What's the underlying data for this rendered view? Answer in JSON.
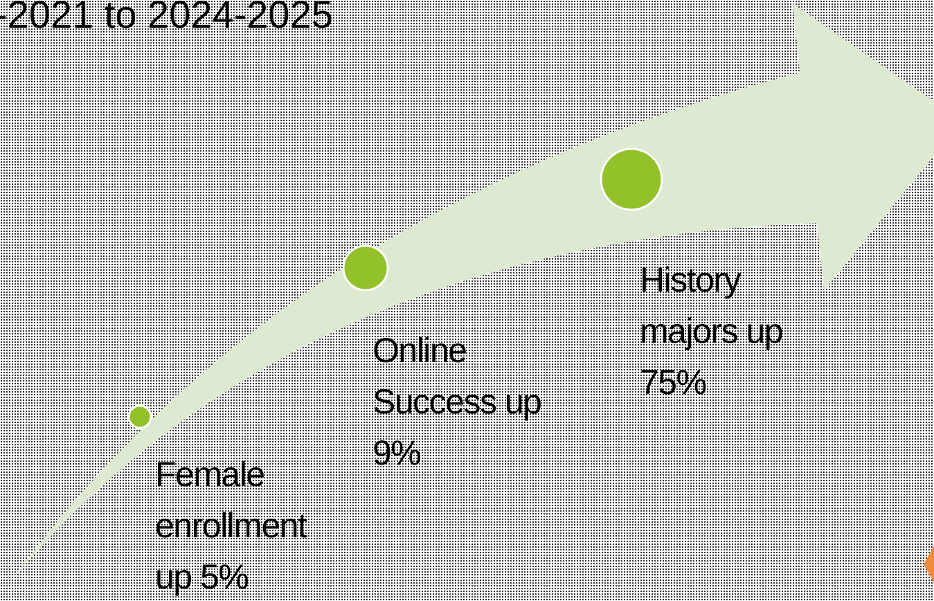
{
  "header": {
    "title": "-2021 to 2024-2025"
  },
  "items": [
    {
      "lines": [
        "Female",
        "enrollment",
        "up 5%"
      ]
    },
    {
      "lines": [
        "Online",
        "Success up",
        "9%"
      ]
    },
    {
      "lines": [
        "History",
        "majors up",
        "75%"
      ]
    }
  ]
}
